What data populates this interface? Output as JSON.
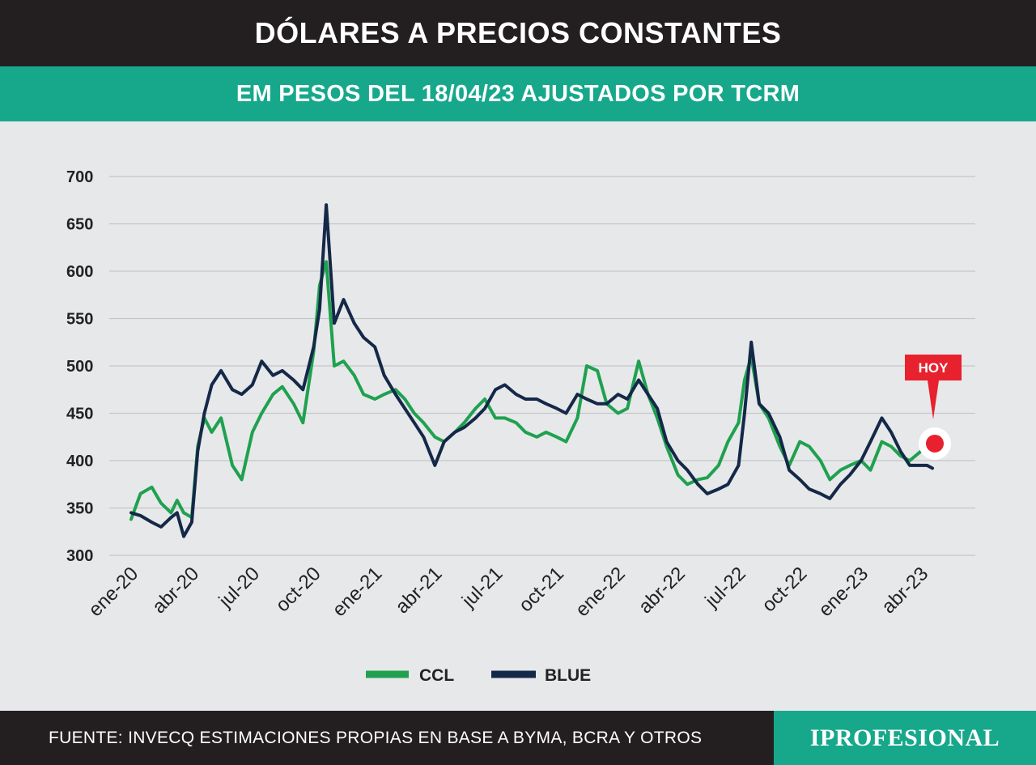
{
  "header": {
    "title": "DÓLARES A PRECIOS CONSTANTES",
    "subtitle": "EM PESOS DEL 18/04/23 AJUSTADOS POR TCRM"
  },
  "footer": {
    "source": "FUENTE: INVECQ ESTIMACIONES PROPIAS EN BASE A BYMA, BCRA Y OTROS",
    "logo": "IPROFESIONAL"
  },
  "colors": {
    "ccl": "#1fa14f",
    "blue": "#142848",
    "header_bg": "#231f20",
    "accent": "#17a88c",
    "marker": "#e8212f"
  },
  "chart_data": {
    "type": "line",
    "title": "DÓLARES A PRECIOS CONSTANTES",
    "subtitle": "EM PESOS DEL 18/04/23 AJUSTADOS POR TCRM",
    "ylim": [
      300,
      700
    ],
    "yticks": [
      300,
      350,
      400,
      450,
      500,
      550,
      600,
      650,
      700
    ],
    "grid": true,
    "xticks": [
      "ene-20",
      "abr-20",
      "jul-20",
      "oct-20",
      "ene-21",
      "abr-21",
      "jul-21",
      "oct-21",
      "ene-22",
      "abr-22",
      "jul-22",
      "oct-22",
      "ene-23",
      "abr-23"
    ],
    "x": [
      "2020-01-01",
      "2020-01-15",
      "2020-02-01",
      "2020-02-15",
      "2020-03-01",
      "2020-03-10",
      "2020-03-20",
      "2020-04-01",
      "2020-04-10",
      "2020-04-20",
      "2020-05-01",
      "2020-05-15",
      "2020-06-01",
      "2020-06-15",
      "2020-07-01",
      "2020-07-15",
      "2020-08-01",
      "2020-08-15",
      "2020-09-01",
      "2020-09-15",
      "2020-10-01",
      "2020-10-10",
      "2020-10-20",
      "2020-11-01",
      "2020-11-15",
      "2020-12-01",
      "2020-12-15",
      "2021-01-01",
      "2021-01-15",
      "2021-02-01",
      "2021-02-15",
      "2021-03-01",
      "2021-03-15",
      "2021-04-01",
      "2021-04-15",
      "2021-05-01",
      "2021-05-15",
      "2021-06-01",
      "2021-06-15",
      "2021-07-01",
      "2021-07-15",
      "2021-08-01",
      "2021-08-15",
      "2021-09-01",
      "2021-09-15",
      "2021-10-01",
      "2021-10-15",
      "2021-11-01",
      "2021-11-15",
      "2021-12-01",
      "2021-12-15",
      "2022-01-01",
      "2022-01-15",
      "2022-02-01",
      "2022-02-15",
      "2022-03-01",
      "2022-03-15",
      "2022-04-01",
      "2022-04-15",
      "2022-05-01",
      "2022-05-15",
      "2022-06-01",
      "2022-06-15",
      "2022-07-01",
      "2022-07-10",
      "2022-07-20",
      "2022-08-01",
      "2022-08-15",
      "2022-09-01",
      "2022-09-15",
      "2022-10-01",
      "2022-10-15",
      "2022-11-01",
      "2022-11-15",
      "2022-12-01",
      "2022-12-15",
      "2023-01-01",
      "2023-01-15",
      "2023-02-01",
      "2023-02-15",
      "2023-03-01",
      "2023-03-15",
      "2023-04-01",
      "2023-04-10",
      "2023-04-18"
    ],
    "series": [
      {
        "name": "CCL",
        "values": [
          338,
          365,
          372,
          355,
          345,
          358,
          345,
          340,
          415,
          445,
          430,
          445,
          395,
          380,
          430,
          450,
          470,
          478,
          460,
          440,
          515,
          585,
          610,
          500,
          505,
          490,
          470,
          465,
          470,
          475,
          465,
          450,
          440,
          425,
          420,
          430,
          440,
          455,
          465,
          445,
          445,
          440,
          430,
          425,
          430,
          425,
          420,
          445,
          500,
          495,
          460,
          450,
          455,
          505,
          470,
          445,
          415,
          385,
          375,
          380,
          382,
          395,
          420,
          440,
          485,
          510,
          460,
          445,
          415,
          395,
          420,
          415,
          400,
          380,
          390,
          395,
          400,
          390,
          420,
          415,
          405,
          400,
          410,
          415,
          412
        ],
        "type": "line"
      },
      {
        "name": "BLUE",
        "values": [
          345,
          342,
          335,
          330,
          340,
          345,
          320,
          335,
          410,
          450,
          480,
          495,
          475,
          470,
          480,
          505,
          490,
          495,
          485,
          475,
          520,
          560,
          670,
          545,
          570,
          545,
          530,
          520,
          490,
          470,
          455,
          440,
          425,
          395,
          420,
          430,
          435,
          445,
          455,
          475,
          480,
          470,
          465,
          465,
          460,
          455,
          450,
          470,
          465,
          460,
          460,
          470,
          465,
          485,
          470,
          455,
          420,
          400,
          390,
          375,
          365,
          370,
          375,
          395,
          450,
          525,
          460,
          450,
          425,
          390,
          380,
          370,
          365,
          360,
          375,
          385,
          400,
          420,
          445,
          430,
          410,
          395,
          395,
          395,
          392
        ]
      }
    ],
    "legend": [
      "CCL",
      "BLUE"
    ],
    "legend_position": "bottom-center",
    "annotation": "HOY"
  }
}
